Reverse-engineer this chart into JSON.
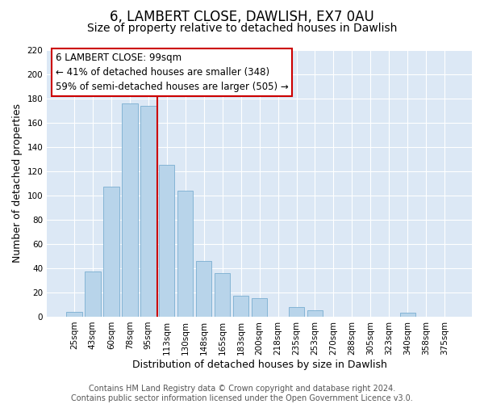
{
  "title": "6, LAMBERT CLOSE, DAWLISH, EX7 0AU",
  "subtitle": "Size of property relative to detached houses in Dawlish",
  "xlabel": "Distribution of detached houses by size in Dawlish",
  "ylabel": "Number of detached properties",
  "bar_labels": [
    "25sqm",
    "43sqm",
    "60sqm",
    "78sqm",
    "95sqm",
    "113sqm",
    "130sqm",
    "148sqm",
    "165sqm",
    "183sqm",
    "200sqm",
    "218sqm",
    "235sqm",
    "253sqm",
    "270sqm",
    "288sqm",
    "305sqm",
    "323sqm",
    "340sqm",
    "358sqm",
    "375sqm"
  ],
  "bar_heights": [
    4,
    37,
    107,
    176,
    174,
    125,
    104,
    46,
    36,
    17,
    15,
    0,
    8,
    5,
    0,
    0,
    0,
    0,
    3,
    0,
    0
  ],
  "bar_color": "#b8d4ea",
  "bar_edge_color": "#7aaed0",
  "vline_color": "#cc0000",
  "ylim": [
    0,
    220
  ],
  "yticks": [
    0,
    20,
    40,
    60,
    80,
    100,
    120,
    140,
    160,
    180,
    200,
    220
  ],
  "annotation_title": "6 LAMBERT CLOSE: 99sqm",
  "annotation_line1": "← 41% of detached houses are smaller (348)",
  "annotation_line2": "59% of semi-detached houses are larger (505) →",
  "footer_line1": "Contains HM Land Registry data © Crown copyright and database right 2024.",
  "footer_line2": "Contains public sector information licensed under the Open Government Licence v3.0.",
  "fig_background_color": "#ffffff",
  "plot_background_color": "#dce8f5",
  "grid_color": "#ffffff",
  "title_fontsize": 12,
  "subtitle_fontsize": 10,
  "axis_label_fontsize": 9,
  "tick_fontsize": 7.5,
  "footer_fontsize": 7,
  "annotation_fontsize": 8.5
}
